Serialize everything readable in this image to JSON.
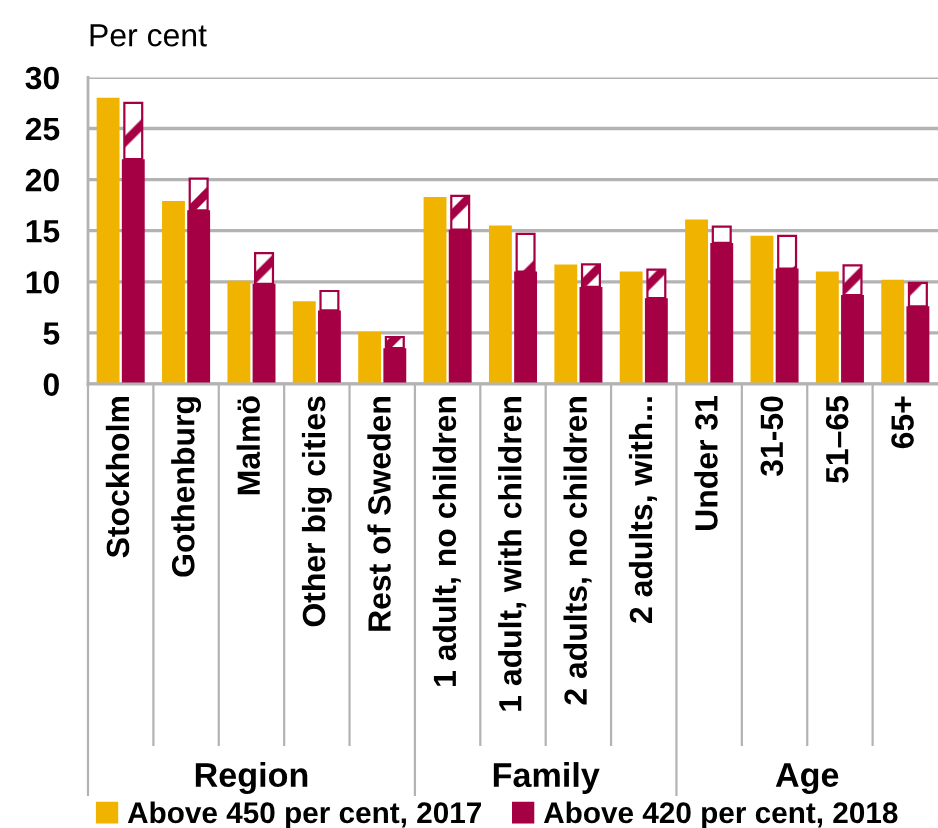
{
  "chart_data": {
    "type": "bar",
    "ylabel": "Per cent",
    "categories": [
      "Stockholm",
      "Gothenburg",
      "Malmö",
      "Other big cities",
      "Rest of Sweden",
      "1 adult, no children",
      "1 adult, with children",
      "2 adults, no children",
      "2 adults, with...",
      "Under 31",
      "31-50",
      "51–65",
      "65+"
    ],
    "series": [
      {
        "name": "Above 450 per cent, 2017",
        "color": "#f0b400",
        "values": [
          28.0,
          17.9,
          10.1,
          8.1,
          5.1,
          18.3,
          15.5,
          11.7,
          11.0,
          16.1,
          14.5,
          11.0,
          10.2
        ]
      },
      {
        "name": "Above 420 per cent, 2018",
        "color": "#a50044",
        "values": [
          22.0,
          17.0,
          9.8,
          7.2,
          3.5,
          15.1,
          11.0,
          9.5,
          8.4,
          13.8,
          11.3,
          8.7,
          7.6
        ]
      },
      {
        "color": "#a50044",
        "values": [
          5.5,
          3.1,
          3.0,
          1.9,
          1.1,
          3.3,
          3.7,
          2.2,
          2.8,
          1.6,
          3.2,
          2.9,
          2.3
        ],
        "base": [
          22.0,
          17.0,
          9.8,
          7.2,
          3.5,
          15.1,
          11.0,
          9.5,
          8.4,
          13.8,
          11.3,
          8.7,
          7.6
        ]
      }
    ],
    "ylim": [
      0,
      30
    ],
    "yticks": [
      0,
      5,
      10,
      15,
      20,
      25,
      30
    ],
    "grid": "y",
    "legend": "bottom",
    "annotations": [
      "Region",
      "Family",
      "Age"
    ]
  }
}
